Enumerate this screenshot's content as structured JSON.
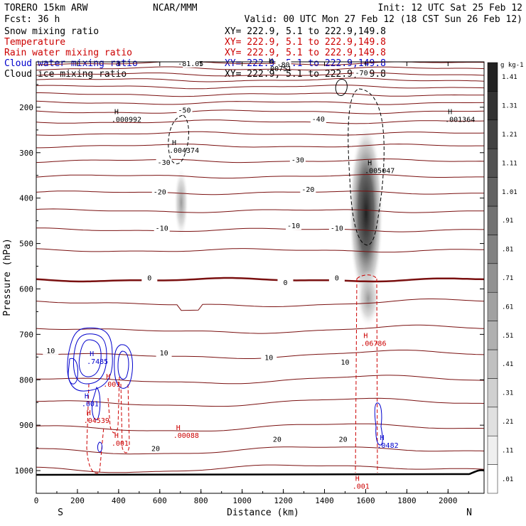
{
  "header": {
    "left_line1": "TORERO  15km ARW",
    "left_line2": "Fcst:   36 h",
    "center": "NCAR/MMM",
    "init": "Init: 12 UTC Sat 25 Feb 12",
    "valid": "Valid: 00 UTC Mon 27 Feb 12 (18 CST Sun 26 Feb 12)"
  },
  "fields": [
    {
      "name": "Snow mixing ratio",
      "xy": "XY= 222.9,  5.1 to 222.9,149.8",
      "color": "#000000"
    },
    {
      "name": "Temperature",
      "xy": "XY= 222.9,  5.1 to 222.9,149.8",
      "color": "#cc0000"
    },
    {
      "name": "Rain water mixing ratio",
      "xy": "XY= 222.9,  5.1 to 222.9,149.8",
      "color": "#cc0000"
    },
    {
      "name": "Cloud water mixing ratio",
      "xy": "XY= 222.9,  5.1 to 222.9,149.8",
      "color": "#0000cc"
    },
    {
      "name": "Cloud ice mixing ratio",
      "xy": "XY= 222.9,  5.1 to 222.9,149.8",
      "color": "#000000"
    }
  ],
  "chart_data": {
    "type": "cross-section contour",
    "xlabel": "Distance (km)",
    "ylabel": "Pressure (hPa)",
    "xlim": [
      0,
      2175
    ],
    "ylim": [
      1050,
      100
    ],
    "x_ticks": [
      0,
      200,
      400,
      600,
      800,
      1000,
      1200,
      1400,
      1600,
      1800,
      2000
    ],
    "y_ticks": [
      200,
      300,
      400,
      500,
      600,
      700,
      800,
      900,
      1000
    ],
    "end_labels": {
      "left": "S",
      "right": "N"
    },
    "colorbar": {
      "unit": "g kg-1",
      "labels": [
        ".01",
        ".11",
        ".21",
        ".31",
        ".41",
        ".51",
        ".61",
        ".71",
        ".81",
        ".91",
        "1.01",
        "1.11",
        "1.21",
        "1.31",
        "1.41"
      ]
    },
    "temperature_labels": [
      {
        "text": "-81.05",
        "x": 750,
        "p": 108
      },
      {
        "text": "-80",
        "x": 1200,
        "p": 110
      },
      {
        "text": "-70",
        "x": 1580,
        "p": 128
      },
      {
        "text": "-50",
        "x": 720,
        "p": 210
      },
      {
        "text": "-40",
        "x": 1370,
        "p": 230
      },
      {
        "text": "-30",
        "x": 620,
        "p": 325
      },
      {
        "text": "-30",
        "x": 1270,
        "p": 320
      },
      {
        "text": "-20",
        "x": 600,
        "p": 390
      },
      {
        "text": "-20",
        "x": 1320,
        "p": 385
      },
      {
        "text": "-10",
        "x": 610,
        "p": 470
      },
      {
        "text": "-10",
        "x": 1250,
        "p": 465
      },
      {
        "text": "-10",
        "x": 1460,
        "p": 470
      },
      {
        "text": "0",
        "x": 550,
        "p": 580
      },
      {
        "text": "0",
        "x": 1210,
        "p": 590
      },
      {
        "text": "0",
        "x": 1460,
        "p": 580
      },
      {
        "text": "10",
        "x": 70,
        "p": 740
      },
      {
        "text": "10",
        "x": 620,
        "p": 745
      },
      {
        "text": "10",
        "x": 1130,
        "p": 755
      },
      {
        "text": "10",
        "x": 1500,
        "p": 765
      },
      {
        "text": "20",
        "x": 580,
        "p": 955
      },
      {
        "text": "20",
        "x": 1170,
        "p": 935
      },
      {
        "text": "20",
        "x": 1490,
        "p": 935
      }
    ],
    "extrema": [
      {
        "text": ".000992",
        "x": 400,
        "p": 232,
        "color": "#000000"
      },
      {
        "text": ".004374",
        "x": 680,
        "p": 300,
        "color": "#000000"
      },
      {
        "text": ".005047",
        "x": 1630,
        "p": 345,
        "color": "#000000"
      },
      {
        "text": ".001364",
        "x": 2020,
        "p": 232,
        "color": "#000000"
      },
      {
        "text": ".00751",
        "x": 1150,
        "p": 120,
        "color": "#000000"
      },
      {
        "text": ".7485",
        "x": 280,
        "p": 765,
        "color": "#0000cc"
      },
      {
        "text": ".001",
        "x": 255,
        "p": 858,
        "color": "#0000cc"
      },
      {
        "text": ".0482",
        "x": 1690,
        "p": 950,
        "color": "#0000cc"
      },
      {
        "text": ".06786",
        "x": 1610,
        "p": 725,
        "color": "#cc0000"
      },
      {
        "text": ".04539",
        "x": 265,
        "p": 895,
        "color": "#cc0000"
      },
      {
        "text": ".00088",
        "x": 700,
        "p": 928,
        "color": "#cc0000"
      },
      {
        "text": ".001",
        "x": 360,
        "p": 815,
        "color": "#cc0000"
      },
      {
        "text": ".001",
        "x": 400,
        "p": 945,
        "color": "#cc0000"
      },
      {
        "text": ".001",
        "x": 1570,
        "p": 1040,
        "color": "#cc0000"
      }
    ]
  }
}
